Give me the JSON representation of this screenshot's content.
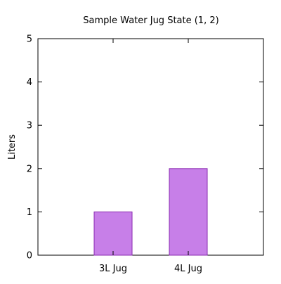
{
  "chart_data": {
    "type": "bar",
    "title": "Sample Water Jug State (1, 2)",
    "xlabel": "",
    "ylabel": "Liters",
    "categories": [
      "3L Jug",
      "4L Jug"
    ],
    "values": [
      1,
      2
    ],
    "ylim": [
      0,
      5
    ],
    "yticks": [
      "0",
      "1",
      "2",
      "3",
      "4",
      "5"
    ],
    "grid": false,
    "legend": "none",
    "colors": {
      "bar_fill": "#c77fe8",
      "bar_stroke": "#8a2ab0",
      "axis": "#000000"
    }
  }
}
